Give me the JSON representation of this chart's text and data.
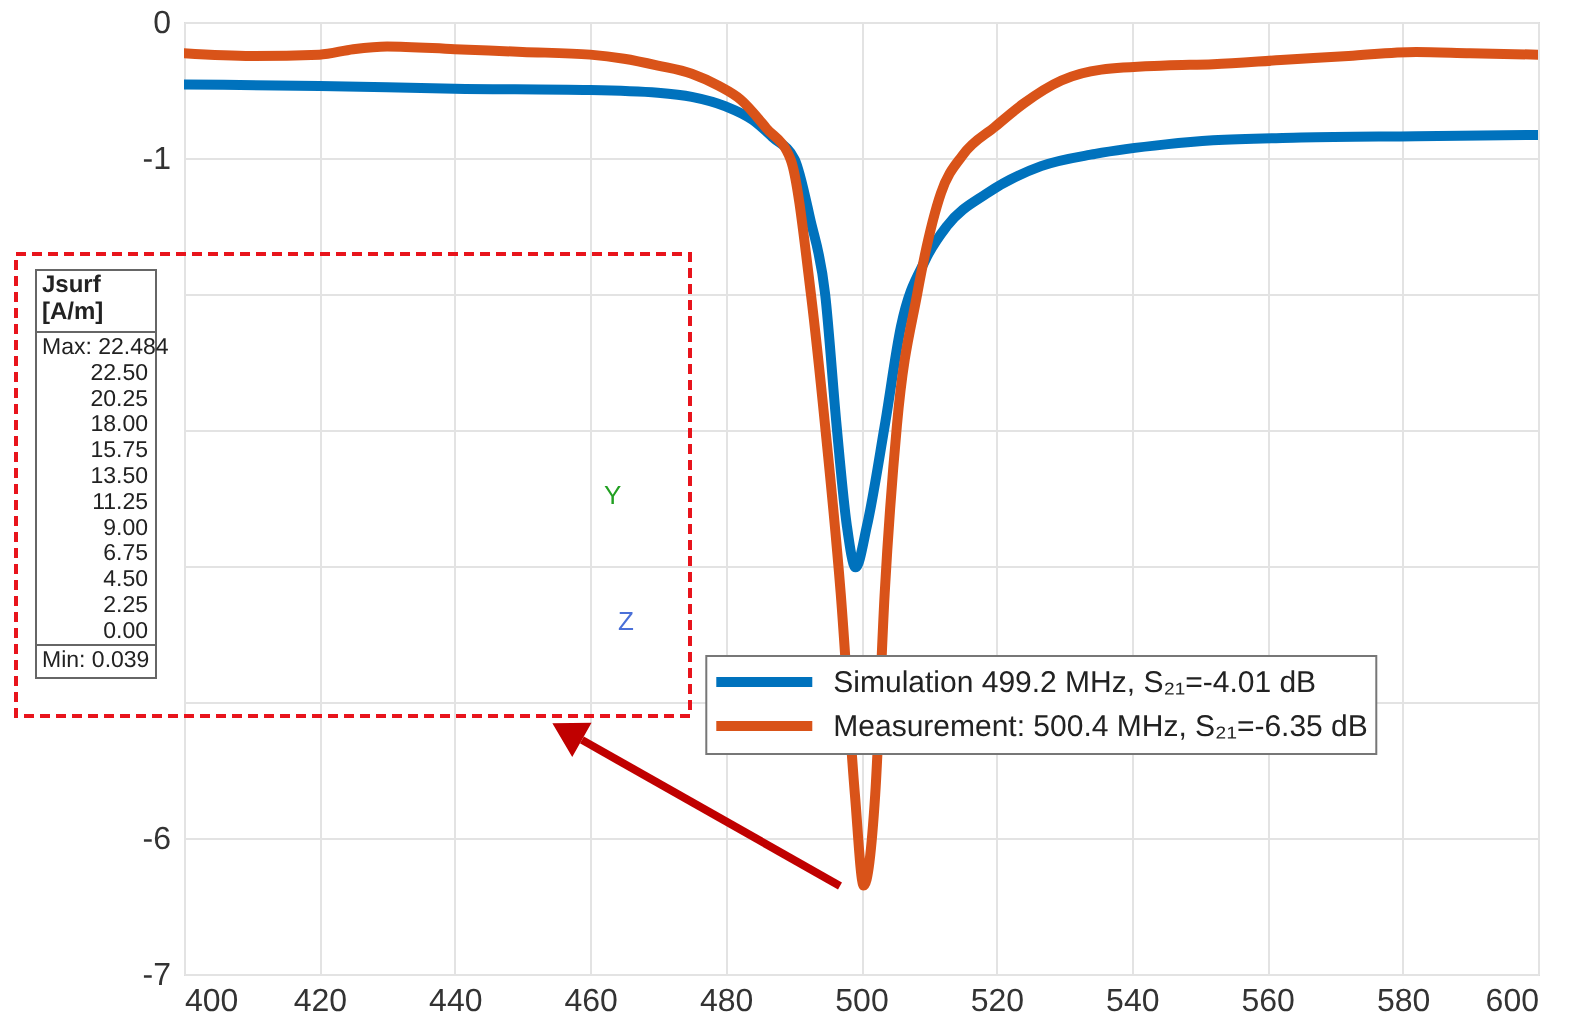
{
  "chart_data": {
    "type": "line",
    "xlim": [
      400,
      600
    ],
    "xticks": [
      400,
      420,
      440,
      460,
      480,
      500,
      520,
      540,
      560,
      580,
      600
    ],
    "ylim": [
      -7,
      0
    ],
    "yticks": [
      -7,
      -6,
      {
        "value": -5,
        "label": null
      },
      {
        "value": -4,
        "label": null
      },
      {
        "value": -3,
        "label": null
      },
      {
        "value": -2,
        "label": null
      },
      -1,
      0
    ],
    "grid": true,
    "legend": "right",
    "line_style": "solid",
    "series": [
      {
        "name": "Simulation 499.2 MHz, S₂₁=-4.01 dB",
        "color": "#0072bd",
        "x": [
          400,
          420,
          440,
          460,
          470,
          475,
          480,
          484,
          487,
          490.2,
          492.5,
          494.7,
          496.4,
          497.9,
          499.2,
          500.9,
          503.5,
          505.9,
          509.5,
          512.7,
          518.6,
          526.6,
          534.6,
          545,
          552,
          565,
          582,
          600
        ],
        "values": [
          -0.46,
          -0.47,
          -0.49,
          -0.5,
          -0.52,
          -0.55,
          -0.62,
          -0.72,
          -0.85,
          -1.01,
          -1.45,
          -2.0,
          -2.97,
          -3.7,
          -4.01,
          -3.7,
          -2.97,
          -2.24,
          -1.75,
          -1.5,
          -1.26,
          -1.06,
          -0.97,
          -0.9,
          -0.87,
          -0.85,
          -0.84,
          -0.83
        ]
      },
      {
        "name": "Measurement: 500.4 MHz, S₂₁=-6.35 dB",
        "color": "#d95319",
        "x": [
          400,
          410,
          420,
          425,
          430,
          440,
          450,
          460,
          465,
          470,
          475,
          479,
          482.2,
          486,
          489.6,
          492.6,
          494.7,
          497,
          499.1,
          500.4,
          502.1,
          503.5,
          505.3,
          508.3,
          511.8,
          515,
          519.8,
          524,
          529.6,
          535.5,
          545,
          552,
          562,
          572,
          582,
          590,
          600
        ],
        "values": [
          -0.23,
          -0.25,
          -0.24,
          -0.2,
          -0.18,
          -0.2,
          -0.22,
          -0.24,
          -0.27,
          -0.32,
          -0.38,
          -0.47,
          -0.57,
          -0.78,
          -1.01,
          -2.0,
          -2.97,
          -4.2,
          -5.68,
          -6.35,
          -5.68,
          -4.2,
          -2.97,
          -2.0,
          -1.26,
          -0.98,
          -0.77,
          -0.6,
          -0.43,
          -0.35,
          -0.32,
          -0.31,
          -0.28,
          -0.25,
          -0.22,
          -0.23,
          -0.24
        ]
      }
    ],
    "annotations": [
      "Jsurf [A/m]",
      "Max: 22.484",
      "22.50",
      "20.25",
      "18.00",
      "15.75",
      "13.50",
      "11.25",
      "9.00",
      "6.75",
      "4.50",
      "2.25",
      "0.00",
      "Min: 0.039",
      "Y",
      "Z"
    ]
  }
}
